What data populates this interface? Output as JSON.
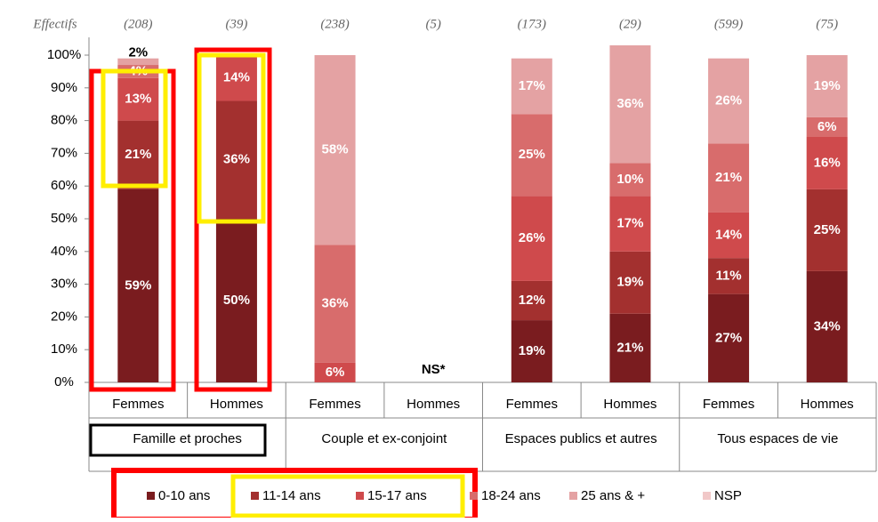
{
  "chart_data": {
    "type": "stacked_bar",
    "effectifs_label": "Effectifs",
    "sample_sizes": [
      "(208)",
      "(39)",
      "(238)",
      "(5)",
      "(173)",
      "(29)",
      "(599)",
      "(75)"
    ],
    "categories": [
      "Femmes",
      "Hommes",
      "Femmes",
      "Hommes",
      "Femmes",
      "Hommes",
      "Femmes",
      "Hommes"
    ],
    "groups": [
      "Famille et proches",
      "Couple et ex-conjoint",
      "Espaces publics et autres",
      "Tous espaces de vie"
    ],
    "annotations": [
      "NS*"
    ],
    "ylim": [
      0,
      100
    ],
    "yticks": [
      {
        "value": 0,
        "label": "0%"
      },
      {
        "value": 10,
        "label": "10%"
      },
      {
        "value": 20,
        "label": "20%"
      },
      {
        "value": 30,
        "label": "30%"
      },
      {
        "value": 40,
        "label": "40%"
      },
      {
        "value": 50,
        "label": "50%"
      },
      {
        "value": 60,
        "label": "60%"
      },
      {
        "value": 70,
        "label": "70%"
      },
      {
        "value": 80,
        "label": "80%"
      },
      {
        "value": 90,
        "label": "90%"
      },
      {
        "value": 100,
        "label": "100%"
      }
    ],
    "series": [
      {
        "name": "0-10 ans",
        "color": "#7a1c1f",
        "values": [
          59,
          50,
          null,
          null,
          19,
          21,
          27,
          34
        ],
        "value_labels": [
          "59%",
          "50%",
          null,
          null,
          "19%",
          "21%",
          "27%",
          "34%"
        ]
      },
      {
        "name": "11-14 ans",
        "color": "#a3302f",
        "values": [
          21,
          36,
          null,
          null,
          12,
          19,
          11,
          25
        ],
        "value_labels": [
          "21%",
          "36%",
          null,
          null,
          "12%",
          "19%",
          "11%",
          "25%"
        ]
      },
      {
        "name": "15-17 ans",
        "color": "#cf4a4c",
        "values": [
          13,
          14,
          6,
          null,
          26,
          17,
          14,
          16
        ],
        "value_labels": [
          "13%",
          "14%",
          "6%",
          null,
          "26%",
          "17%",
          "14%",
          "16%"
        ]
      },
      {
        "name": "18-24 ans",
        "color": "#d86c6c",
        "values": [
          4,
          null,
          36,
          null,
          25,
          10,
          21,
          6
        ],
        "value_labels": [
          "4%",
          null,
          "36%",
          null,
          "25%",
          "10%",
          "21%",
          "6%"
        ]
      },
      {
        "name": "25 ans & +",
        "color": "#e4a2a3",
        "values": [
          2,
          null,
          58,
          null,
          17,
          36,
          26,
          19
        ],
        "value_labels": [
          "2%",
          null,
          "58%",
          null,
          "17%",
          "36%",
          "26%",
          "19%"
        ]
      },
      {
        "name": "NSP",
        "color": "#f1c8c8",
        "values": [
          null,
          null,
          null,
          null,
          null,
          null,
          null,
          null
        ],
        "value_labels": [
          null,
          null,
          null,
          null,
          null,
          null,
          null,
          null
        ]
      }
    ]
  }
}
